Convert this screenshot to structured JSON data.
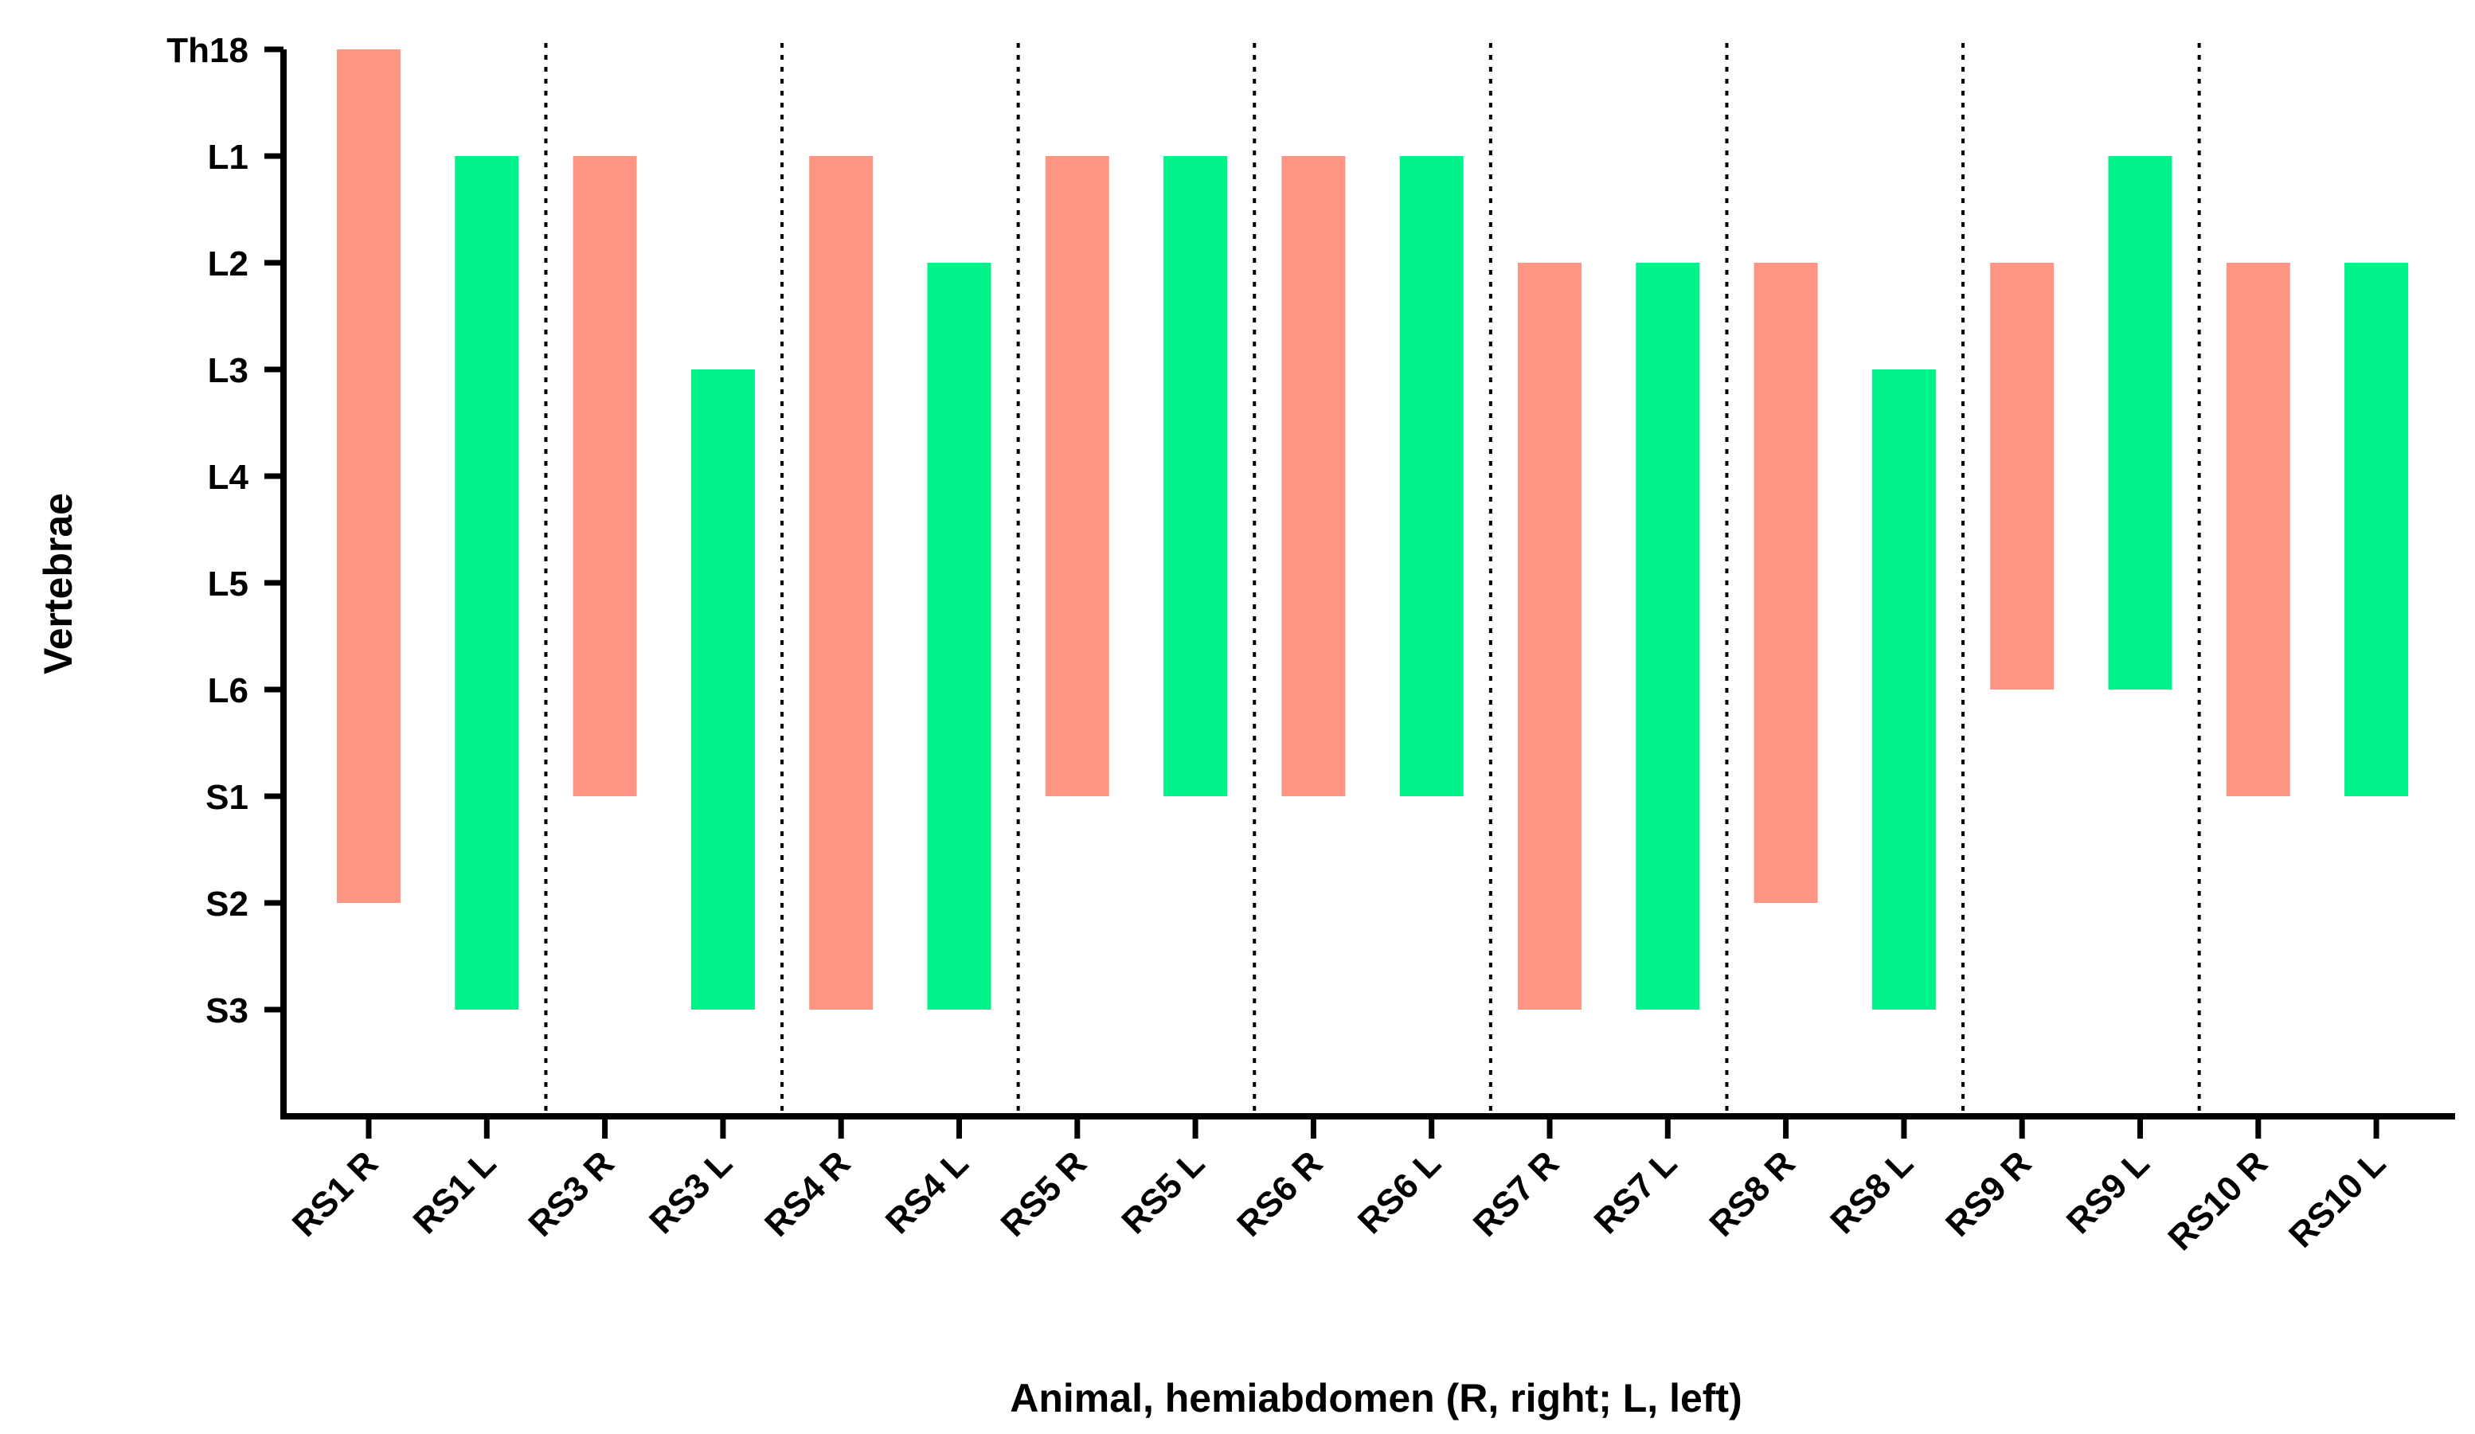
{
  "chart_data": {
    "type": "bar",
    "subtype": "floating-range",
    "title": "",
    "xlabel": "Animal, hemiabdomen (R, right; L, left)",
    "ylabel": "Vertebrae",
    "y_categories": [
      "Th18",
      "L1",
      "L2",
      "L3",
      "L4",
      "L5",
      "L6",
      "S1",
      "S2",
      "S3"
    ],
    "categories": [
      "RS1 R",
      "RS1 L",
      "RS3 R",
      "RS3 L",
      "RS4 R",
      "RS4 L",
      "RS5 R",
      "RS5 L",
      "RS6 R",
      "RS6 L",
      "RS7 R",
      "RS7 L",
      "RS8 R",
      "RS8 L",
      "RS9 R",
      "RS9 L",
      "RS10 R",
      "RS10 L"
    ],
    "ranges": [
      {
        "label": "RS1 R",
        "side": "R",
        "from": "Th18",
        "to": "S2"
      },
      {
        "label": "RS1 L",
        "side": "L",
        "from": "L1",
        "to": "S3"
      },
      {
        "label": "RS3 R",
        "side": "R",
        "from": "L1",
        "to": "S1"
      },
      {
        "label": "RS3 L",
        "side": "L",
        "from": "L3",
        "to": "S3"
      },
      {
        "label": "RS4 R",
        "side": "R",
        "from": "L1",
        "to": "S3"
      },
      {
        "label": "RS4 L",
        "side": "L",
        "from": "L2",
        "to": "S3"
      },
      {
        "label": "RS5 R",
        "side": "R",
        "from": "L1",
        "to": "S1"
      },
      {
        "label": "RS5 L",
        "side": "L",
        "from": "L1",
        "to": "S1"
      },
      {
        "label": "RS6 R",
        "side": "R",
        "from": "L1",
        "to": "S1"
      },
      {
        "label": "RS6 L",
        "side": "L",
        "from": "L1",
        "to": "S1"
      },
      {
        "label": "RS7 R",
        "side": "R",
        "from": "L2",
        "to": "S3"
      },
      {
        "label": "RS7 L",
        "side": "L",
        "from": "L2",
        "to": "S3"
      },
      {
        "label": "RS8 R",
        "side": "R",
        "from": "L2",
        "to": "S2"
      },
      {
        "label": "RS8 L",
        "side": "L",
        "from": "L3",
        "to": "S3"
      },
      {
        "label": "RS9 R",
        "side": "R",
        "from": "L2",
        "to": "L6"
      },
      {
        "label": "RS9 L",
        "side": "L",
        "from": "L1",
        "to": "L6"
      },
      {
        "label": "RS10 R",
        "side": "R",
        "from": "L2",
        "to": "S1"
      },
      {
        "label": "RS10 L",
        "side": "L",
        "from": "L2",
        "to": "S1"
      }
    ],
    "groups": [
      "RS1",
      "RS3",
      "RS4",
      "RS5",
      "RS6",
      "RS7",
      "RS8",
      "RS9",
      "RS10"
    ],
    "colors": {
      "R": "#fc9583",
      "L": "#00f28a"
    },
    "grid": false,
    "legend": "none"
  }
}
